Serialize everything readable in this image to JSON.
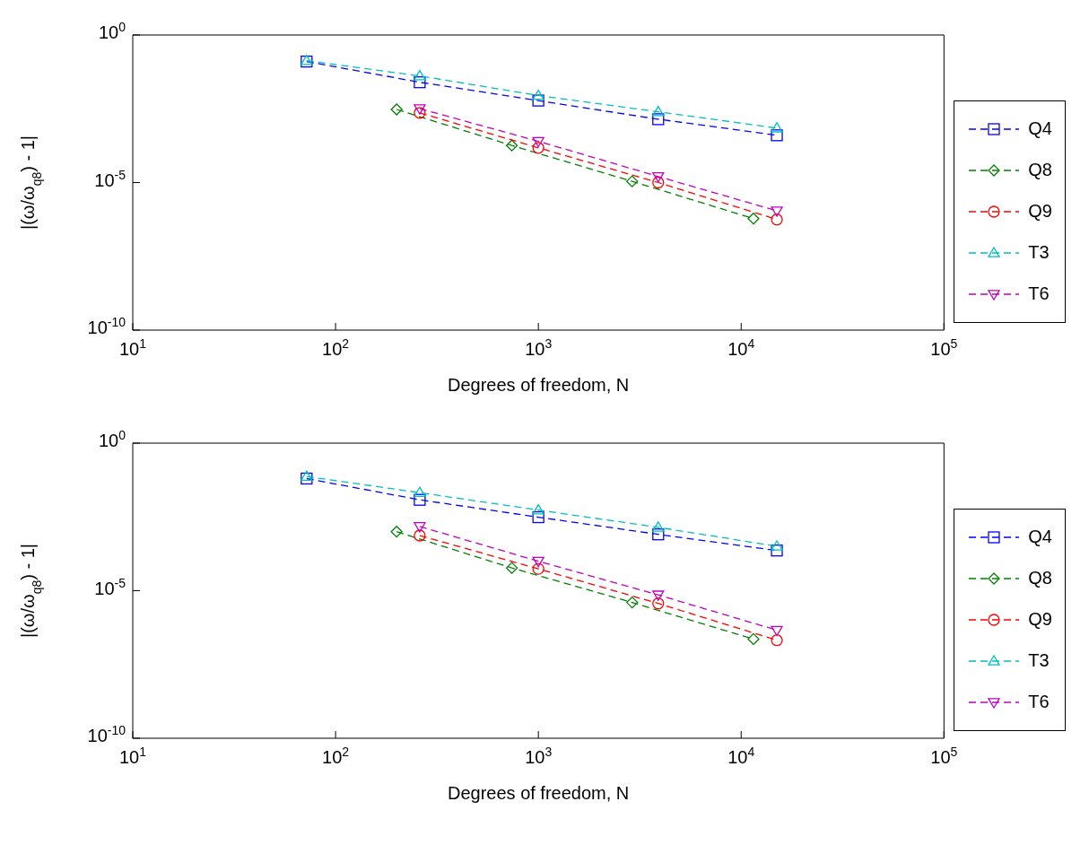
{
  "chart_data": [
    {
      "type": "line",
      "xlabel": "Degrees of freedom, N",
      "ylabel": "|(ω/ω$_{q8}$) - 1|",
      "log": "xy",
      "grid": false,
      "legend": "right",
      "line_style": "dashed",
      "xlim": [
        10,
        100000
      ],
      "xticks": [
        {
          "value": 10,
          "label": "10$^{1}$"
        },
        {
          "value": 100,
          "label": "10$^{2}$"
        },
        {
          "value": 1000,
          "label": "10$^{3}$"
        },
        {
          "value": 10000,
          "label": "10$^{4}$"
        },
        {
          "value": 100000,
          "label": "10$^{5}$"
        }
      ],
      "ylim": [
        1e-10,
        1
      ],
      "yticks": [
        {
          "value": 1e-10,
          "label": "10$^{-10}$"
        },
        {
          "value": 1e-05,
          "label": "10$^{-5}$"
        },
        {
          "value": 1,
          "label": "10$^{0}$"
        }
      ],
      "series": [
        {
          "name": "Q4",
          "color": "#0000ff",
          "marker": "square",
          "x": [
            72,
            260,
            1000,
            3900,
            15000
          ],
          "values": [
            0.126,
            0.025,
            0.006,
            0.0014,
            0.0004
          ]
        },
        {
          "name": "Q8",
          "color": "#008000",
          "marker": "diamond",
          "x": [
            200,
            740,
            2900,
            11500
          ],
          "values": [
            0.003,
            0.00018,
            1.1e-05,
            6e-07
          ]
        },
        {
          "name": "Q9",
          "color": "#ff0000",
          "marker": "circle",
          "x": [
            260,
            1000,
            3900,
            15000
          ],
          "values": [
            0.0023,
            0.00015,
            1e-05,
            5.6e-07
          ]
        },
        {
          "name": "T3",
          "color": "#00bfbf",
          "marker": "triangle",
          "x": [
            72,
            260,
            1000,
            3900,
            15000
          ],
          "values": [
            0.135,
            0.041,
            0.0089,
            0.0025,
            0.0007
          ]
        },
        {
          "name": "T6",
          "color": "#bf00bf",
          "marker": "triangle-down",
          "x": [
            260,
            1000,
            3900,
            15000
          ],
          "values": [
            0.0032,
            0.00025,
            1.6e-05,
            1.1e-06
          ]
        }
      ]
    },
    {
      "type": "line",
      "xlabel": "Degrees of freedom, N",
      "ylabel": "|(ω/ω$_{q8}$) - 1|",
      "log": "xy",
      "grid": false,
      "legend": "right",
      "line_style": "dashed",
      "xlim": [
        10,
        100000
      ],
      "xticks": [
        {
          "value": 10,
          "label": "10$^{1}$"
        },
        {
          "value": 100,
          "label": "10$^{2}$"
        },
        {
          "value": 1000,
          "label": "10$^{3}$"
        },
        {
          "value": 10000,
          "label": "10$^{4}$"
        },
        {
          "value": 100000,
          "label": "10$^{5}$"
        }
      ],
      "ylim": [
        1e-10,
        1
      ],
      "yticks": [
        {
          "value": 1e-10,
          "label": "10$^{-10}$"
        },
        {
          "value": 1e-05,
          "label": "10$^{-5}$"
        },
        {
          "value": 1,
          "label": "10$^{0}$"
        }
      ],
      "series": [
        {
          "name": "Q4",
          "color": "#0000ff",
          "marker": "square",
          "x": [
            72,
            260,
            1000,
            3900,
            15000
          ],
          "values": [
            0.063,
            0.012,
            0.0031,
            0.00081,
            0.00023
          ]
        },
        {
          "name": "Q8",
          "color": "#008000",
          "marker": "diamond",
          "x": [
            200,
            740,
            2900,
            11500
          ],
          "values": [
            0.001,
            5.9e-05,
            4e-06,
            2.3e-07
          ]
        },
        {
          "name": "Q9",
          "color": "#ff0000",
          "marker": "circle",
          "x": [
            260,
            1000,
            3900,
            15000
          ],
          "values": [
            0.00074,
            5.5e-05,
            3.7e-06,
            2.1e-07
          ]
        },
        {
          "name": "T3",
          "color": "#00bfbf",
          "marker": "triangle",
          "x": [
            72,
            260,
            1000,
            3900,
            15000
          ],
          "values": [
            0.074,
            0.021,
            0.0054,
            0.0014,
            0.00032
          ]
        },
        {
          "name": "T6",
          "color": "#bf00bf",
          "marker": "triangle-down",
          "x": [
            260,
            1000,
            3900,
            15000
          ],
          "values": [
            0.0015,
            0.0001,
            7.2e-06,
            4.6e-07
          ]
        }
      ]
    }
  ]
}
